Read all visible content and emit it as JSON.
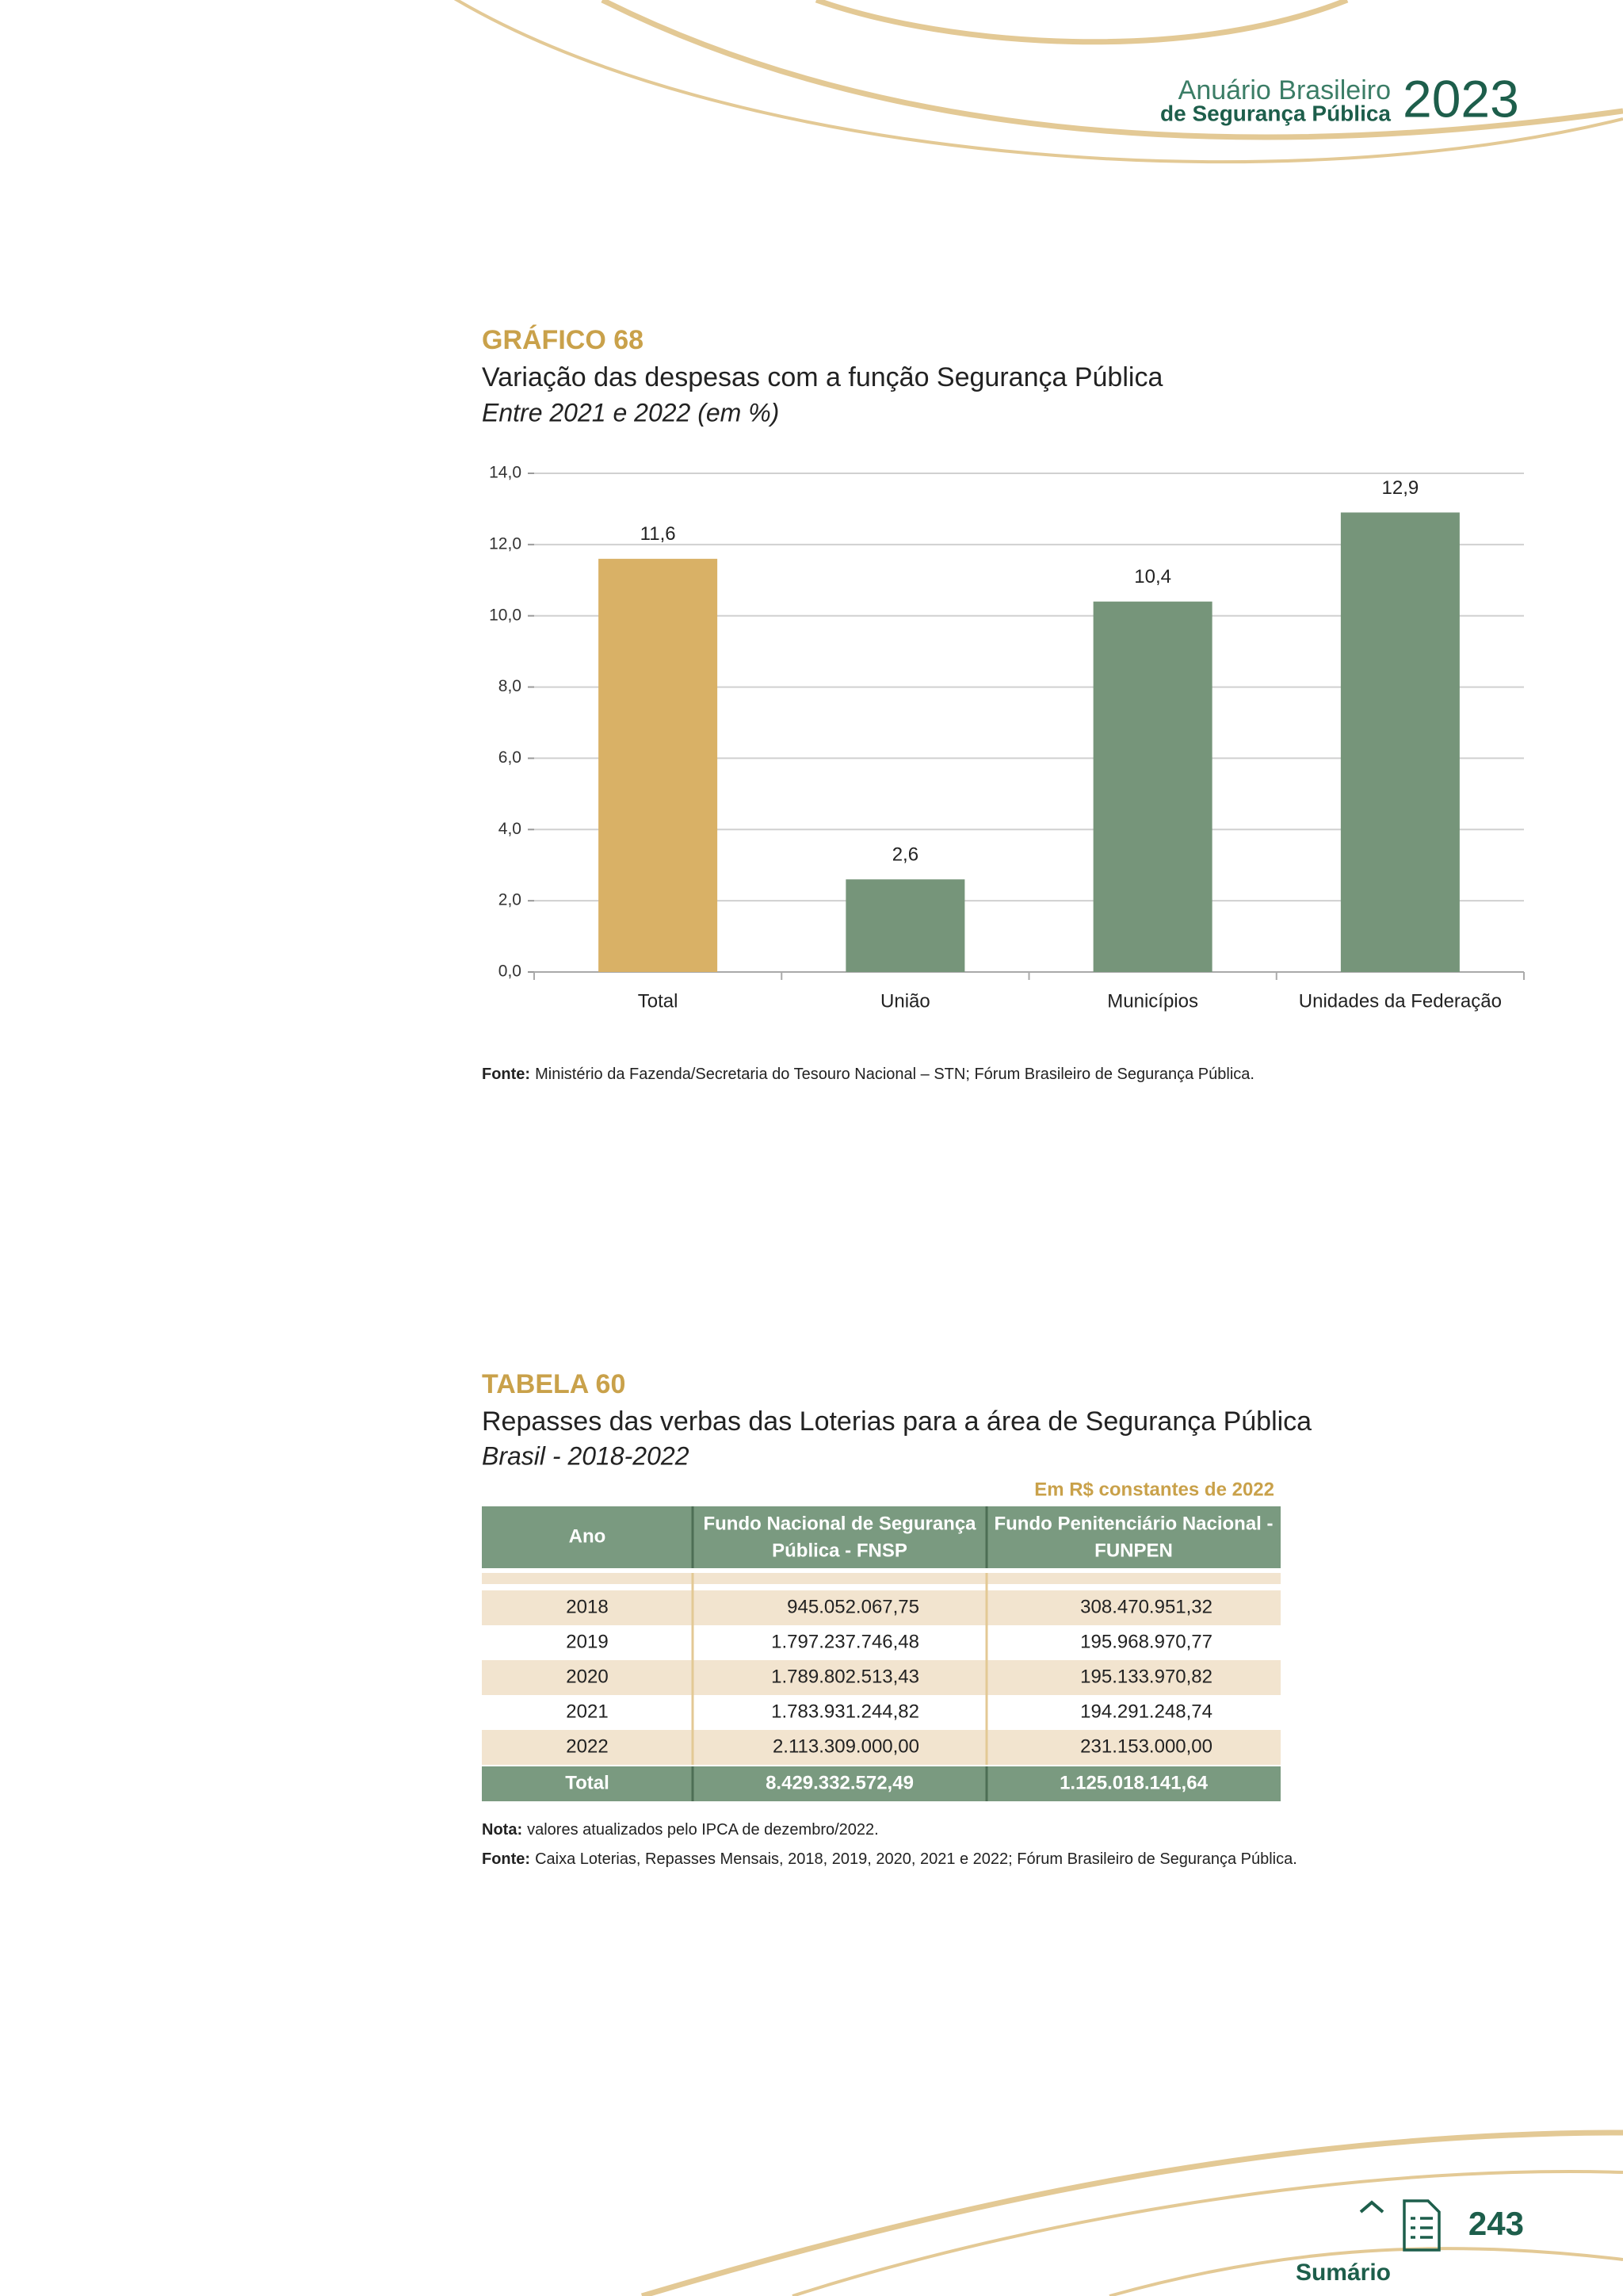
{
  "header": {
    "line1": "Anuário Brasileiro",
    "line2": "de Segurança Pública",
    "year": "2023"
  },
  "chart_data": {
    "type": "bar",
    "label": "GRÁFICO 68",
    "title": "Variação das despesas com a função Segurança Pública",
    "subtitle": "Entre 2021 e 2022 (em %)",
    "categories": [
      "Total",
      "União",
      "Municípios",
      "Unidades da Federação"
    ],
    "values": [
      11.6,
      2.6,
      10.4,
      12.9
    ],
    "value_labels": [
      "11,6",
      "2,6",
      "10,4",
      "12,9"
    ],
    "colors": [
      "#d9b166",
      "#76957a",
      "#76957a",
      "#76957a"
    ],
    "ylim": [
      0,
      14
    ],
    "yticks": [
      {
        "value": 0,
        "label": "0,0"
      },
      {
        "value": 2,
        "label": "2,0"
      },
      {
        "value": 4,
        "label": "4,0"
      },
      {
        "value": 6,
        "label": "6,0"
      },
      {
        "value": 8,
        "label": "8,0"
      },
      {
        "value": 10,
        "label": "10,0"
      },
      {
        "value": 12,
        "label": "12,0"
      },
      {
        "value": 14,
        "label": "14,0"
      }
    ],
    "grid": true,
    "source_label": "Fonte:",
    "source": "Ministério da Fazenda/Secretaria do Tesouro Nacional – STN; Fórum Brasileiro de Segurança Pública."
  },
  "table": {
    "label": "TABELA 60",
    "title": "Repasses das verbas das Loterias para a área de Segurança Pública",
    "subtitle": "Brasil - 2018-2022",
    "unit": "Em R$ constantes de 2022",
    "columns": [
      [
        "Ano"
      ],
      [
        "Fundo Nacional de Segurança",
        "Pública - FNSP"
      ],
      [
        "Fundo Penitenciário Nacional -",
        "FUNPEN"
      ]
    ],
    "rows": [
      [
        "2018",
        "945.052.067,75",
        "308.470.951,32"
      ],
      [
        "2019",
        "1.797.237.746,48",
        "195.968.970,77"
      ],
      [
        "2020",
        "1.789.802.513,43",
        "195.133.970,82"
      ],
      [
        "2021",
        "1.783.931.244,82",
        "194.291.248,74"
      ],
      [
        "2022",
        "2.113.309.000,00",
        "231.153.000,00"
      ]
    ],
    "total": [
      "Total",
      "8.429.332.572,49",
      "1.125.018.141,64"
    ],
    "note_label": "Nota:",
    "note": "valores atualizados pelo IPCA de dezembro/2022.",
    "source_label": "Fonte:",
    "source": "Caixa Loterias, Repasses Mensais, 2018, 2019, 2020, 2021 e 2022; Fórum Brasileiro de Segurança Pública."
  },
  "footer": {
    "summary": "Sumário",
    "page": "243"
  }
}
